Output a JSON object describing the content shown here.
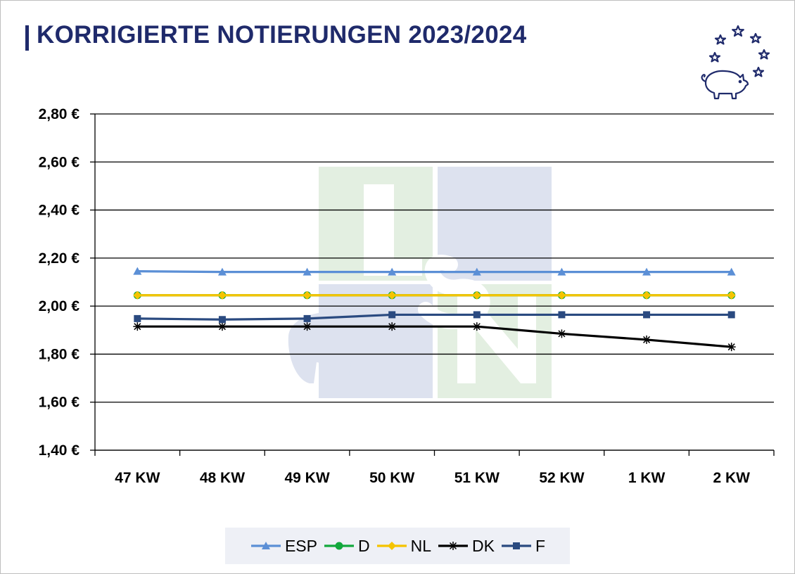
{
  "title": "KORRIGIERTE NOTIERUNGEN 2023/2024",
  "colors": {
    "title": "#1f2a6b",
    "ESP": "#5b8fd6",
    "D": "#12a83c",
    "NL": "#f5c400",
    "DK": "#000000",
    "F": "#2a4a80",
    "grid": "#000000",
    "watermark_green": "#e3efe1",
    "watermark_blue": "#dde2ef"
  },
  "logo": {
    "icon": "pig-with-stars-icon"
  },
  "watermark": {
    "letters": [
      "L",
      "S",
      "N"
    ],
    "icon": "pig-silhouette-icon"
  },
  "chart_data": {
    "type": "line",
    "categories": [
      "47 KW",
      "48 KW",
      "49 KW",
      "50 KW",
      "51 KW",
      "52 KW",
      "1 KW",
      "2 KW"
    ],
    "ylim": [
      1.4,
      2.8
    ],
    "yticks": [
      "2,80 €",
      "2,60 €",
      "2,40 €",
      "2,20 €",
      "2,00 €",
      "1,80 €",
      "1,60 €",
      "1,40 €"
    ],
    "ytick_values": [
      2.8,
      2.6,
      2.4,
      2.2,
      2.0,
      1.8,
      1.6,
      1.4
    ],
    "grid": "horizontal",
    "legend_position": "bottom",
    "series": [
      {
        "name": "ESP",
        "marker": "triangle",
        "values": [
          2.145,
          2.142,
          2.142,
          2.142,
          2.142,
          2.142,
          2.142,
          2.142
        ]
      },
      {
        "name": "D",
        "marker": "circle",
        "values": [
          2.045,
          2.045,
          2.045,
          2.045,
          2.045,
          2.045,
          2.045,
          2.045
        ]
      },
      {
        "name": "NL",
        "marker": "diamond",
        "values": [
          2.045,
          2.045,
          2.045,
          2.045,
          2.045,
          2.045,
          2.045,
          2.045
        ]
      },
      {
        "name": "DK",
        "marker": "star",
        "values": [
          1.915,
          1.915,
          1.915,
          1.915,
          1.915,
          1.885,
          1.86,
          1.83
        ]
      },
      {
        "name": "F",
        "marker": "square",
        "values": [
          1.948,
          1.944,
          1.948,
          1.964,
          1.964,
          1.964,
          1.964,
          1.964
        ]
      }
    ]
  }
}
